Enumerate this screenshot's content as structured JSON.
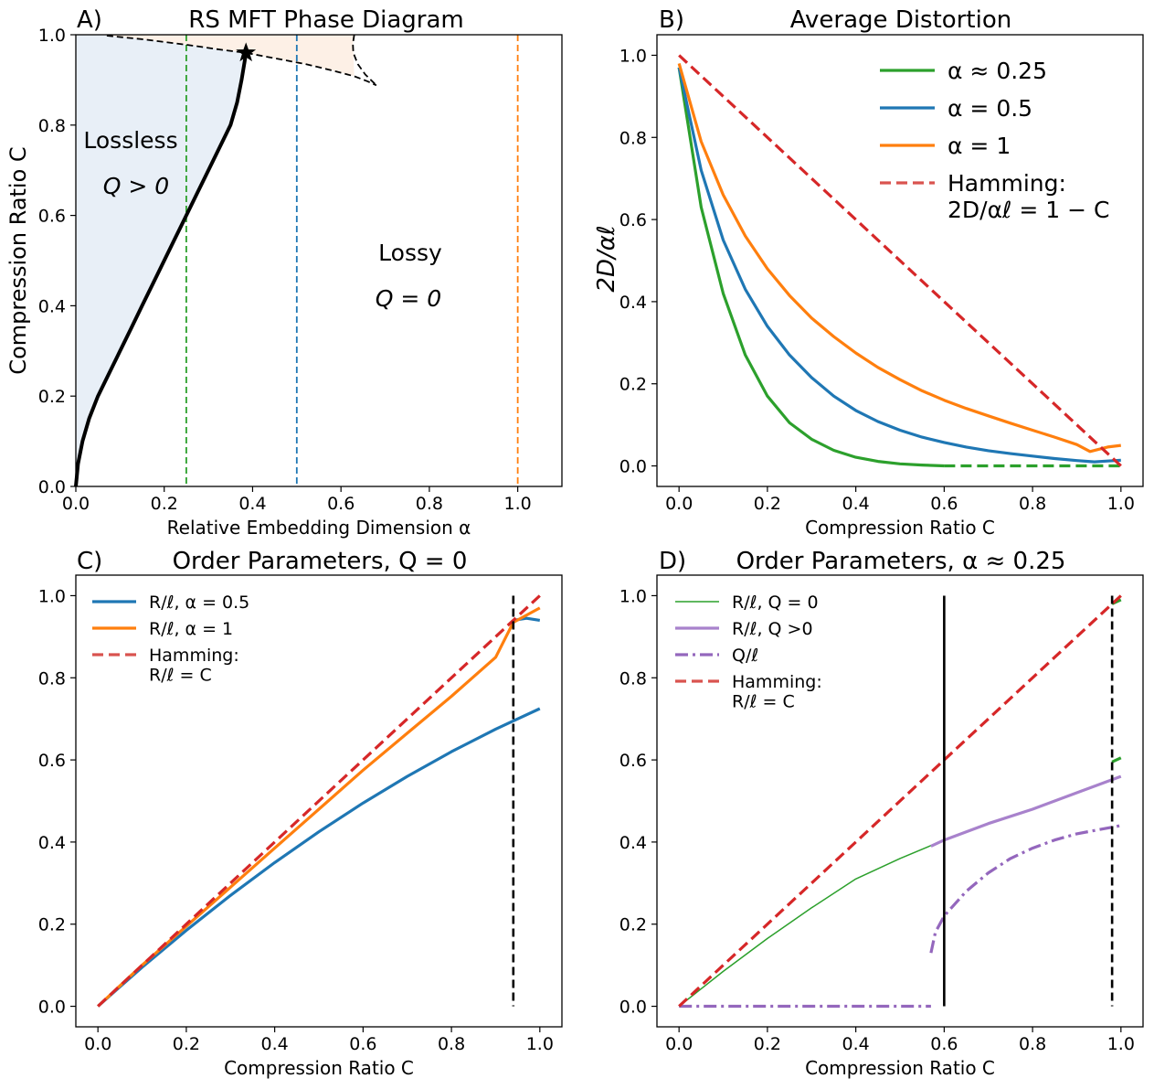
{
  "chart_data": [
    {
      "id": "A",
      "type": "phase-diagram",
      "panel_label": "A)",
      "title": "RS MFT Phase Diagram",
      "xlabel": "Relative Embedding Dimension α",
      "ylabel": "Compression Ratio C",
      "xlim": [
        0.0,
        1.1
      ],
      "ylim": [
        0.0,
        1.0
      ],
      "xticks": [
        "0.0",
        "0.2",
        "0.4",
        "0.6",
        "0.8",
        "1.0"
      ],
      "yticks": [
        "0.0",
        "0.2",
        "0.4",
        "0.6",
        "0.8",
        "1.0"
      ],
      "regions": [
        {
          "name": "Lossless",
          "condition": "Q > 0",
          "color": "#e8eff7"
        },
        {
          "name": "Lossy",
          "condition": "Q = 0",
          "color": "#ffffff"
        },
        {
          "name": "coexistence",
          "condition": "",
          "color": "#fdf0e6"
        }
      ],
      "region_labels": {
        "lossless": "Lossless",
        "lossless_q": "Q > 0",
        "lossy": "Lossy",
        "lossy_q": "Q = 0"
      },
      "boundary_solid": {
        "color": "#000000",
        "points": [
          [
            0.0,
            0.0
          ],
          [
            0.005,
            0.05
          ],
          [
            0.015,
            0.1
          ],
          [
            0.03,
            0.15
          ],
          [
            0.05,
            0.2
          ],
          [
            0.075,
            0.25
          ],
          [
            0.1,
            0.3
          ],
          [
            0.125,
            0.35
          ],
          [
            0.15,
            0.4
          ],
          [
            0.175,
            0.45
          ],
          [
            0.2,
            0.5
          ],
          [
            0.225,
            0.55
          ],
          [
            0.25,
            0.6
          ],
          [
            0.275,
            0.65
          ],
          [
            0.3,
            0.7
          ],
          [
            0.325,
            0.75
          ],
          [
            0.35,
            0.8
          ],
          [
            0.365,
            0.85
          ],
          [
            0.375,
            0.9
          ],
          [
            0.382,
            0.94
          ],
          [
            0.385,
            0.96
          ]
        ]
      },
      "boundary_dashed": [
        {
          "points": [
            [
              0.07,
              0.998
            ],
            [
              0.15,
              0.99
            ],
            [
              0.25,
              0.978
            ],
            [
              0.32,
              0.968
            ],
            [
              0.385,
              0.96
            ],
            [
              0.45,
              0.948
            ],
            [
              0.52,
              0.935
            ],
            [
              0.58,
              0.921
            ],
            [
              0.63,
              0.908
            ],
            [
              0.66,
              0.897
            ],
            [
              0.68,
              0.888
            ]
          ]
        },
        {
          "points": [
            [
              0.63,
              1.0
            ],
            [
              0.627,
              0.98
            ],
            [
              0.628,
              0.96
            ],
            [
              0.638,
              0.935
            ],
            [
              0.655,
              0.912
            ],
            [
              0.68,
              0.888
            ]
          ]
        }
      ],
      "critical_point": {
        "x": 0.385,
        "y": 0.96
      },
      "vertical_lines": [
        {
          "x": 0.25,
          "color": "#2ca02c"
        },
        {
          "x": 0.5,
          "color": "#1f77b4"
        },
        {
          "x": 1.0,
          "color": "#ff7f0e"
        }
      ]
    },
    {
      "id": "B",
      "type": "line",
      "panel_label": "B)",
      "title": "Average Distortion",
      "xlabel": "Compression Ratio C",
      "ylabel": "2D/αℓ",
      "xlim": [
        -0.05,
        1.05
      ],
      "ylim": [
        -0.05,
        1.05
      ],
      "xticks": [
        "0.0",
        "0.2",
        "0.4",
        "0.6",
        "0.8",
        "1.0"
      ],
      "yticks": [
        "0.0",
        "0.2",
        "0.4",
        "0.6",
        "0.8",
        "1.0"
      ],
      "series": [
        {
          "name": "α ≈ 0.25",
          "color": "#2ca02c",
          "style": "solid",
          "points": [
            [
              0.0,
              0.97
            ],
            [
              0.05,
              0.63
            ],
            [
              0.1,
              0.42
            ],
            [
              0.15,
              0.27
            ],
            [
              0.2,
              0.17
            ],
            [
              0.25,
              0.105
            ],
            [
              0.3,
              0.065
            ],
            [
              0.35,
              0.038
            ],
            [
              0.4,
              0.021
            ],
            [
              0.45,
              0.011
            ],
            [
              0.5,
              0.005
            ],
            [
              0.55,
              0.002
            ],
            [
              0.6,
              0.0
            ]
          ]
        },
        {
          "name": "α ≈ 0.25 (dashed)",
          "color": "#2ca02c",
          "style": "dashed",
          "points": [
            [
              0.6,
              0.0
            ],
            [
              1.0,
              0.0
            ]
          ]
        },
        {
          "name": "α = 0.5",
          "color": "#1f77b4",
          "style": "solid",
          "points": [
            [
              0.0,
              0.97
            ],
            [
              0.05,
              0.72
            ],
            [
              0.1,
              0.55
            ],
            [
              0.15,
              0.43
            ],
            [
              0.2,
              0.34
            ],
            [
              0.25,
              0.27
            ],
            [
              0.3,
              0.215
            ],
            [
              0.35,
              0.17
            ],
            [
              0.4,
              0.135
            ],
            [
              0.45,
              0.108
            ],
            [
              0.5,
              0.087
            ],
            [
              0.55,
              0.07
            ],
            [
              0.6,
              0.057
            ],
            [
              0.65,
              0.046
            ],
            [
              0.7,
              0.037
            ],
            [
              0.75,
              0.03
            ],
            [
              0.8,
              0.024
            ],
            [
              0.85,
              0.018
            ],
            [
              0.9,
              0.013
            ],
            [
              0.94,
              0.01
            ],
            [
              0.97,
              0.012
            ],
            [
              1.0,
              0.014
            ]
          ]
        },
        {
          "name": "α = 1",
          "color": "#ff7f0e",
          "style": "solid",
          "points": [
            [
              0.0,
              0.98
            ],
            [
              0.05,
              0.79
            ],
            [
              0.1,
              0.66
            ],
            [
              0.15,
              0.56
            ],
            [
              0.2,
              0.48
            ],
            [
              0.25,
              0.415
            ],
            [
              0.3,
              0.36
            ],
            [
              0.35,
              0.315
            ],
            [
              0.4,
              0.275
            ],
            [
              0.45,
              0.24
            ],
            [
              0.5,
              0.21
            ],
            [
              0.55,
              0.183
            ],
            [
              0.6,
              0.16
            ],
            [
              0.65,
              0.14
            ],
            [
              0.7,
              0.122
            ],
            [
              0.75,
              0.104
            ],
            [
              0.8,
              0.087
            ],
            [
              0.85,
              0.07
            ],
            [
              0.9,
              0.052
            ],
            [
              0.93,
              0.035
            ],
            [
              0.97,
              0.046
            ],
            [
              1.0,
              0.05
            ]
          ]
        },
        {
          "name": "Hamming: 2D/αℓ = 1 − C",
          "color": "#d62728",
          "style": "dashed",
          "points": [
            [
              0.0,
              1.0
            ],
            [
              1.0,
              0.0
            ]
          ]
        }
      ],
      "legend": [
        {
          "label": "α ≈ 0.25",
          "color": "#2ca02c",
          "style": "solid"
        },
        {
          "label": "α = 0.5",
          "color": "#1f77b4",
          "style": "solid"
        },
        {
          "label": "α = 1",
          "color": "#ff7f0e",
          "style": "solid"
        },
        {
          "label": "Hamming:",
          "label2": "2D/αℓ = 1 − C",
          "color": "#d9534f",
          "style": "dashed"
        }
      ]
    },
    {
      "id": "C",
      "type": "line",
      "panel_label": "C)",
      "title": "Order Parameters, Q = 0",
      "xlabel": "Compression Ratio C",
      "ylabel": "",
      "xlim": [
        -0.05,
        1.05
      ],
      "ylim": [
        -0.05,
        1.05
      ],
      "xticks": [
        "0.0",
        "0.2",
        "0.4",
        "0.6",
        "0.8",
        "1.0"
      ],
      "yticks": [
        "0.0",
        "0.2",
        "0.4",
        "0.6",
        "0.8",
        "1.0"
      ],
      "series": [
        {
          "name": "R/ℓ, α = 0.5",
          "color": "#1f77b4",
          "style": "solid",
          "points": [
            [
              0.0,
              0.0
            ],
            [
              0.1,
              0.095
            ],
            [
              0.2,
              0.185
            ],
            [
              0.3,
              0.27
            ],
            [
              0.4,
              0.35
            ],
            [
              0.5,
              0.425
            ],
            [
              0.6,
              0.495
            ],
            [
              0.7,
              0.56
            ],
            [
              0.8,
              0.62
            ],
            [
              0.9,
              0.675
            ],
            [
              0.94,
              0.695
            ],
            [
              1.0,
              0.725
            ]
          ]
        },
        {
          "name": "R/ℓ, α = 0.5 (branch)",
          "color": "#1f77b4",
          "style": "solid",
          "points": [
            [
              0.94,
              0.94
            ],
            [
              0.97,
              0.945
            ],
            [
              1.0,
              0.94
            ]
          ]
        },
        {
          "name": "R/ℓ, α = 1",
          "color": "#ff7f0e",
          "style": "solid",
          "points": [
            [
              0.0,
              0.0
            ],
            [
              0.1,
              0.1
            ],
            [
              0.2,
              0.195
            ],
            [
              0.3,
              0.29
            ],
            [
              0.4,
              0.385
            ],
            [
              0.5,
              0.48
            ],
            [
              0.6,
              0.575
            ],
            [
              0.7,
              0.665
            ],
            [
              0.8,
              0.755
            ],
            [
              0.9,
              0.85
            ],
            [
              0.94,
              0.935
            ],
            [
              1.0,
              0.97
            ]
          ]
        },
        {
          "name": "Hamming: R/ℓ = C",
          "color": "#d62728",
          "style": "dashed",
          "points": [
            [
              0.0,
              0.0
            ],
            [
              1.0,
              1.0
            ]
          ]
        }
      ],
      "vertical_line": {
        "x": 0.94,
        "color": "#000000",
        "style": "dashed"
      },
      "legend": [
        {
          "label": "R/ℓ, α = 0.5",
          "color": "#1f77b4",
          "style": "solid"
        },
        {
          "label": "R/ℓ, α = 1",
          "color": "#ff7f0e",
          "style": "solid"
        },
        {
          "label": "Hamming:",
          "label2": "R/ℓ = C",
          "color": "#d9534f",
          "style": "dashed"
        }
      ]
    },
    {
      "id": "D",
      "type": "line",
      "panel_label": "D)",
      "title": "Order Parameters, α ≈ 0.25",
      "xlabel": "Compression Ratio C",
      "ylabel": "",
      "xlim": [
        -0.05,
        1.05
      ],
      "ylim": [
        -0.05,
        1.05
      ],
      "xticks": [
        "0.0",
        "0.2",
        "0.4",
        "0.6",
        "0.8",
        "1.0"
      ],
      "yticks": [
        "0.0",
        "0.2",
        "0.4",
        "0.6",
        "0.8",
        "1.0"
      ],
      "series": [
        {
          "name": "R/ℓ, Q = 0",
          "color": "#2ca02c",
          "style": "thin",
          "points": [
            [
              0.0,
              0.0
            ],
            [
              0.1,
              0.085
            ],
            [
              0.2,
              0.165
            ],
            [
              0.3,
              0.24
            ],
            [
              0.4,
              0.31
            ],
            [
              0.5,
              0.36
            ],
            [
              0.6,
              0.405
            ]
          ]
        },
        {
          "name": "R/ℓ, Q = 0 (upper)",
          "color": "#2ca02c",
          "style": "solid",
          "points": [
            [
              0.98,
              0.98
            ],
            [
              1.0,
              0.99
            ]
          ]
        },
        {
          "name": "R/ℓ, Q = 0 (mid)",
          "color": "#2ca02c",
          "style": "solid",
          "points": [
            [
              0.98,
              0.595
            ],
            [
              1.0,
              0.605
            ]
          ]
        },
        {
          "name": "R/ℓ, Q >0",
          "color": "#a882cc",
          "style": "solid",
          "points": [
            [
              0.57,
              0.39
            ],
            [
              0.6,
              0.405
            ],
            [
              0.7,
              0.445
            ],
            [
              0.8,
              0.48
            ],
            [
              0.9,
              0.52
            ],
            [
              1.0,
              0.56
            ]
          ]
        },
        {
          "name": "Q/ℓ",
          "color": "#9467bd",
          "style": "dashdot",
          "points": [
            [
              0.0,
              0.0
            ],
            [
              0.57,
              0.0
            ]
          ]
        },
        {
          "name": "Q/ℓ (branch)",
          "color": "#9467bd",
          "style": "dashdot",
          "points": [
            [
              0.57,
              0.13
            ],
            [
              0.58,
              0.18
            ],
            [
              0.6,
              0.22
            ],
            [
              0.65,
              0.28
            ],
            [
              0.7,
              0.325
            ],
            [
              0.75,
              0.36
            ],
            [
              0.8,
              0.385
            ],
            [
              0.85,
              0.405
            ],
            [
              0.9,
              0.42
            ],
            [
              0.95,
              0.43
            ],
            [
              1.0,
              0.44
            ]
          ]
        },
        {
          "name": "Hamming: R/ℓ = C",
          "color": "#d62728",
          "style": "dashed",
          "points": [
            [
              0.0,
              0.0
            ],
            [
              1.0,
              1.0
            ]
          ]
        }
      ],
      "vertical_lines": [
        {
          "x": 0.6,
          "color": "#000000",
          "style": "solid"
        },
        {
          "x": 0.98,
          "color": "#000000",
          "style": "dashed"
        }
      ],
      "legend": [
        {
          "label": "R/ℓ, Q = 0",
          "color": "#2ca02c",
          "style": "thin"
        },
        {
          "label": "R/ℓ, Q >0",
          "color": "#a882cc",
          "style": "solid"
        },
        {
          "label": "Q/ℓ",
          "color": "#9467bd",
          "style": "dashdot"
        },
        {
          "label": "Hamming:",
          "label2": "R/ℓ = C",
          "color": "#d9534f",
          "style": "dashed"
        }
      ]
    }
  ]
}
